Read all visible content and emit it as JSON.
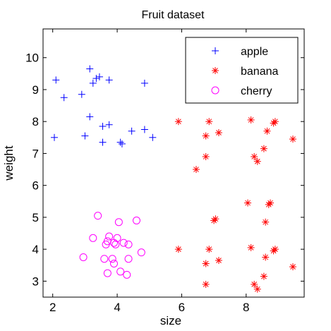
{
  "chart_data": {
    "type": "scatter",
    "title": "Fruit dataset",
    "xlabel": "size",
    "ylabel": "weight",
    "xlim": [
      1.7,
      9.8
    ],
    "ylim": [
      2.5,
      10.9
    ],
    "xticks": [
      "2",
      "4",
      "6",
      "8"
    ],
    "yticks": [
      "3",
      "4",
      "5",
      "6",
      "7",
      "8",
      "9",
      "10"
    ],
    "grid": false,
    "legend_position": "top-right",
    "series": [
      {
        "name": "apple",
        "color": "#0000ff",
        "marker": "plus",
        "points": [
          [
            2.1,
            9.3
          ],
          [
            2.35,
            8.75
          ],
          [
            2.9,
            8.85
          ],
          [
            3.15,
            9.65
          ],
          [
            3.25,
            9.2
          ],
          [
            3.35,
            9.35
          ],
          [
            3.45,
            9.4
          ],
          [
            3.75,
            9.3
          ],
          [
            4.85,
            9.2
          ],
          [
            2.05,
            7.5
          ],
          [
            3.0,
            7.55
          ],
          [
            3.15,
            8.15
          ],
          [
            3.55,
            7.85
          ],
          [
            3.75,
            7.9
          ],
          [
            3.55,
            7.35
          ],
          [
            4.1,
            7.35
          ],
          [
            4.15,
            7.3
          ],
          [
            4.45,
            7.7
          ],
          [
            4.85,
            7.75
          ],
          [
            5.1,
            7.5
          ]
        ]
      },
      {
        "name": "banana",
        "color": "#ff0000",
        "marker": "asterisk",
        "points": [
          [
            5.9,
            8.0
          ],
          [
            6.75,
            7.55
          ],
          [
            6.85,
            8.0
          ],
          [
            7.15,
            7.65
          ],
          [
            6.75,
            6.9
          ],
          [
            6.45,
            6.5
          ],
          [
            8.15,
            8.05
          ],
          [
            8.25,
            6.9
          ],
          [
            8.35,
            6.75
          ],
          [
            8.55,
            7.15
          ],
          [
            8.65,
            7.7
          ],
          [
            8.85,
            7.95
          ],
          [
            8.9,
            8.0
          ],
          [
            9.45,
            7.45
          ],
          [
            5.9,
            4.0
          ],
          [
            6.75,
            3.55
          ],
          [
            6.75,
            2.9
          ],
          [
            6.85,
            4.0
          ],
          [
            7.0,
            4.9
          ],
          [
            7.05,
            4.95
          ],
          [
            7.15,
            3.65
          ],
          [
            8.05,
            5.45
          ],
          [
            8.15,
            4.05
          ],
          [
            8.25,
            2.9
          ],
          [
            8.35,
            2.75
          ],
          [
            8.55,
            3.15
          ],
          [
            8.6,
            3.75
          ],
          [
            8.6,
            4.85
          ],
          [
            8.7,
            5.4
          ],
          [
            8.75,
            5.45
          ],
          [
            8.85,
            3.95
          ],
          [
            8.9,
            4.0
          ],
          [
            9.45,
            3.45
          ]
        ]
      },
      {
        "name": "cherry",
        "color": "#ff00ff",
        "marker": "circle",
        "points": [
          [
            2.95,
            3.75
          ],
          [
            3.25,
            4.35
          ],
          [
            3.4,
            5.05
          ],
          [
            3.6,
            3.7
          ],
          [
            3.65,
            4.15
          ],
          [
            3.7,
            4.25
          ],
          [
            3.75,
            4.4
          ],
          [
            3.7,
            3.25
          ],
          [
            3.85,
            3.7
          ],
          [
            3.9,
            4.2
          ],
          [
            3.9,
            3.55
          ],
          [
            3.95,
            4.15
          ],
          [
            4.0,
            4.35
          ],
          [
            4.05,
            4.85
          ],
          [
            4.1,
            3.3
          ],
          [
            4.2,
            4.2
          ],
          [
            4.3,
            3.2
          ],
          [
            4.35,
            4.15
          ],
          [
            4.35,
            3.7
          ],
          [
            4.6,
            4.9
          ],
          [
            4.75,
            3.9
          ]
        ]
      }
    ]
  }
}
